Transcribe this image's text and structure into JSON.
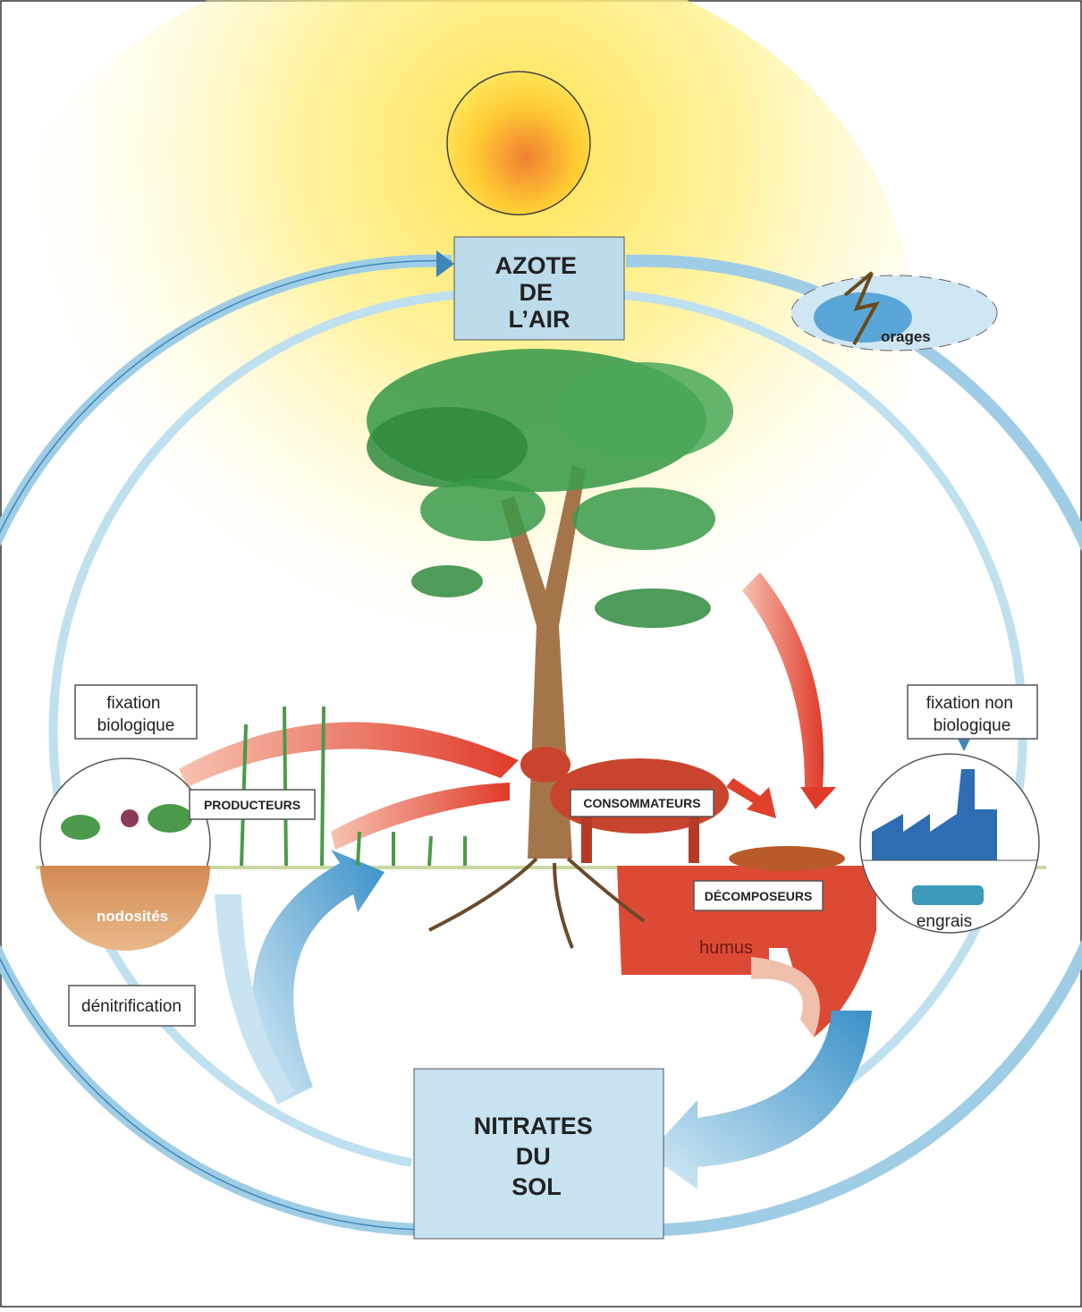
{
  "nodes": {
    "air": {
      "lines": [
        "AZOTE",
        "DE",
        "L’AIR"
      ]
    },
    "soil": {
      "lines": [
        "NITRATES",
        "DU",
        "SOL"
      ]
    }
  },
  "weather": "orages",
  "processes": {
    "fixation_bio": {
      "lines": [
        "fixation",
        "biologique"
      ]
    },
    "fixation_non_bio": {
      "lines": [
        "fixation non",
        "biologique"
      ]
    },
    "denitrification": "dénitrification"
  },
  "groups": {
    "producers": "PRODUCTEURS",
    "consumers": "CONSOMMATEURS",
    "decomposers": "DÉCOMPOSEURS"
  },
  "details": {
    "humus": "humus",
    "nodules": "nodosités",
    "fertilizer": "engrais"
  }
}
